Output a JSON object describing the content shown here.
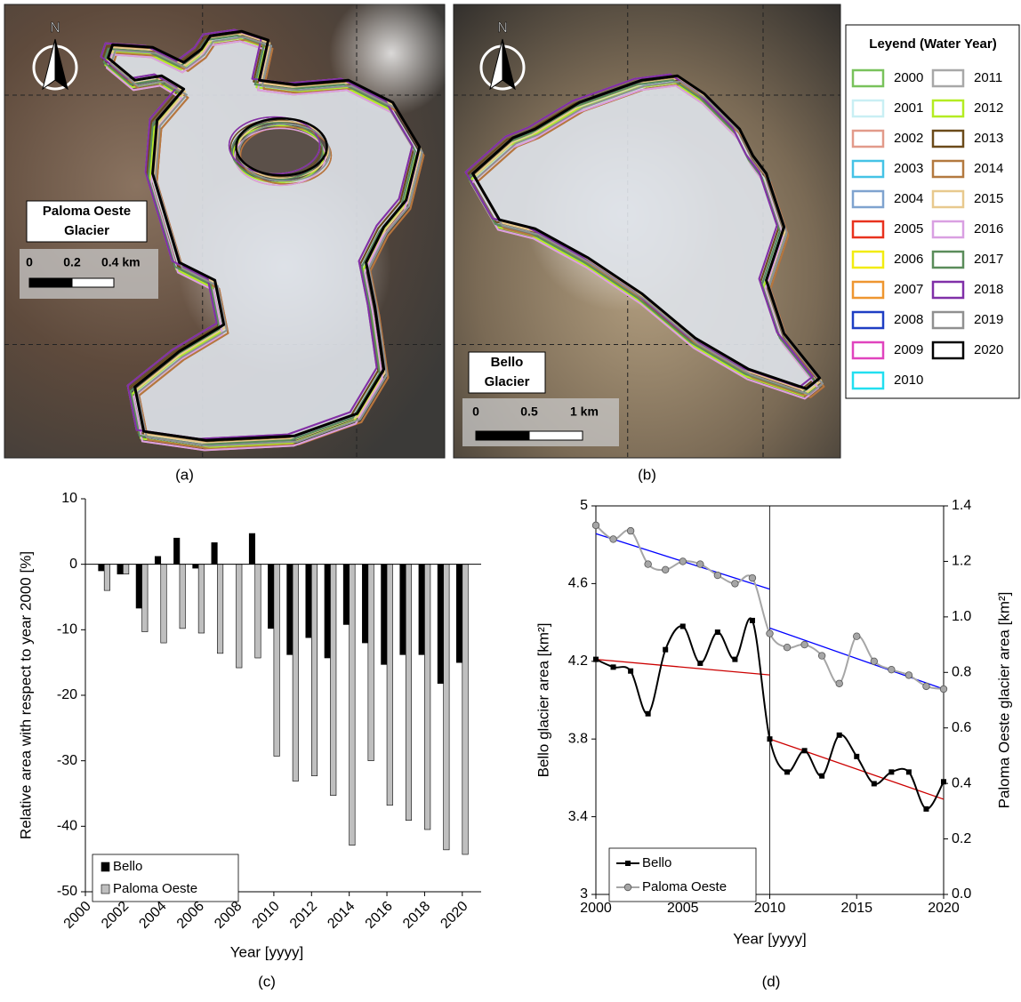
{
  "maps": [
    {
      "north": "N",
      "title": [
        "Paloma Oeste",
        "Glacier"
      ],
      "scale": [
        "0",
        "0.2",
        "0.4 km"
      ],
      "caption": "(a)"
    },
    {
      "north": "N",
      "title": [
        "Bello",
        "Glacier"
      ],
      "scale": [
        "0",
        "0.5",
        "1 km"
      ],
      "caption": "(b)"
    }
  ],
  "legend": {
    "title": "Leyend (Water Year)",
    "items": [
      {
        "label": "2000",
        "color": "#79c25c"
      },
      {
        "label": "2001",
        "color": "#c9eff4"
      },
      {
        "label": "2002",
        "color": "#e29a8a"
      },
      {
        "label": "2003",
        "color": "#45c3e6"
      },
      {
        "label": "2004",
        "color": "#7fa3cf"
      },
      {
        "label": "2005",
        "color": "#e8321e"
      },
      {
        "label": "2006",
        "color": "#f2ec10"
      },
      {
        "label": "2007",
        "color": "#ee9630"
      },
      {
        "label": "2008",
        "color": "#1e3ec4"
      },
      {
        "label": "2009",
        "color": "#e044be"
      },
      {
        "label": "2010",
        "color": "#22dff0"
      },
      {
        "label": "2011",
        "color": "#a8a8a8"
      },
      {
        "label": "2012",
        "color": "#b4ec22"
      },
      {
        "label": "2013",
        "color": "#6b4a1a"
      },
      {
        "label": "2014",
        "color": "#b3793f"
      },
      {
        "label": "2015",
        "color": "#e8c98e"
      },
      {
        "label": "2016",
        "color": "#d9a0e2"
      },
      {
        "label": "2017",
        "color": "#5a8c5a"
      },
      {
        "label": "2018",
        "color": "#8030a8"
      },
      {
        "label": "2019",
        "color": "#909090"
      },
      {
        "label": "2020",
        "color": "#000000"
      }
    ]
  },
  "chart_data": [
    {
      "type": "bar",
      "caption": "(c)",
      "x_label": "Year [yyyy]",
      "y_label": "Relative area with respect to year 2000 [%]",
      "x": [
        2001,
        2002,
        2003,
        2004,
        2005,
        2006,
        2007,
        2008,
        2009,
        2010,
        2011,
        2012,
        2013,
        2014,
        2015,
        2016,
        2017,
        2018,
        2019,
        2020
      ],
      "series": [
        {
          "name": "Bello",
          "color": "#000000",
          "values": [
            -1,
            -1.5,
            -6.7,
            1.2,
            4,
            -0.6,
            3.3,
            0,
            4.7,
            -9.8,
            -13.8,
            -11.2,
            -14.3,
            -9.2,
            -12,
            -15.3,
            -13.8,
            -13.8,
            -18.2,
            -15
          ]
        },
        {
          "name": "Paloma Oeste",
          "color": "#bfbfbf",
          "values": [
            -4,
            -1.5,
            -10.3,
            -12,
            -9.8,
            -10.5,
            -13.6,
            -15.8,
            -14.3,
            -29.3,
            -33.1,
            -32.3,
            -35.3,
            -42.9,
            -30,
            -36.8,
            -39.1,
            -40.5,
            -43.6,
            -44.3
          ]
        }
      ],
      "xlim": [
        2000,
        2021
      ],
      "xticks": [
        2000,
        2002,
        2004,
        2006,
        2008,
        2010,
        2012,
        2014,
        2016,
        2018,
        2020
      ],
      "ylim": [
        -50,
        10
      ],
      "yticks": [
        -50,
        -40,
        -30,
        -20,
        -10,
        0,
        10
      ],
      "legend": "lower left"
    },
    {
      "type": "line",
      "caption": "(d)",
      "x_label": "Year [yyyy]",
      "y_label": "Bello glacier area [km²]",
      "y2_label": "Paloma Oeste glacier area [km²]",
      "x": [
        2000,
        2001,
        2002,
        2003,
        2004,
        2005,
        2006,
        2007,
        2008,
        2009,
        2010,
        2011,
        2012,
        2013,
        2014,
        2015,
        2016,
        2017,
        2018,
        2019,
        2020
      ],
      "series": [
        {
          "name": "Bello",
          "color": "#000000",
          "marker": "square",
          "values": [
            4.21,
            4.17,
            4.15,
            3.93,
            4.26,
            4.38,
            4.19,
            4.35,
            4.21,
            4.41,
            3.8,
            3.63,
            3.74,
            3.61,
            3.82,
            3.71,
            3.57,
            3.63,
            3.63,
            3.44,
            3.58
          ]
        },
        {
          "name": "Paloma Oeste",
          "color": "#a6a6a6",
          "marker": "circle",
          "axis": "y2",
          "values": [
            1.33,
            1.28,
            1.31,
            1.19,
            1.17,
            1.2,
            1.19,
            1.15,
            1.12,
            1.14,
            0.94,
            0.89,
            0.9,
            0.86,
            0.76,
            0.93,
            0.84,
            0.81,
            0.79,
            0.75,
            0.74
          ]
        }
      ],
      "trendlines": [
        {
          "color": "#0000ff",
          "axis": "y2",
          "x": [
            2000,
            2010
          ],
          "y": [
            1.3,
            1.1
          ]
        },
        {
          "color": "#0000ff",
          "axis": "y2",
          "x": [
            2010,
            2020
          ],
          "y": [
            0.96,
            0.74
          ]
        },
        {
          "color": "#cc0000",
          "x": [
            2000,
            2010
          ],
          "y": [
            4.21,
            4.13
          ]
        },
        {
          "color": "#cc0000",
          "x": [
            2010,
            2020
          ],
          "y": [
            3.8,
            3.49
          ]
        }
      ],
      "vline": 2010,
      "xlim": [
        2000,
        2020
      ],
      "xticks": [
        2000,
        2005,
        2010,
        2015,
        2020
      ],
      "ylim": [
        3,
        5
      ],
      "yticks": [
        3,
        3.4,
        3.8,
        4.2,
        4.6,
        5
      ],
      "y2lim": [
        0,
        1.4
      ],
      "y2ticks": [
        {
          "value": 0,
          "label": "0.0"
        },
        0.2,
        0.4,
        0.6,
        0.8,
        {
          "value": 1,
          "label": "1.0"
        },
        1.2,
        1.4
      ],
      "legend": "lower left"
    }
  ]
}
